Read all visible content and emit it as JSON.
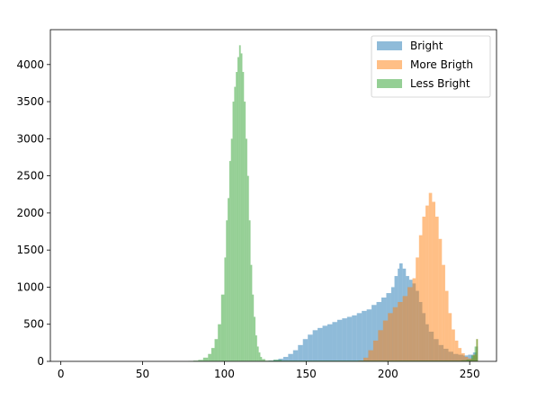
{
  "chart_data": {
    "type": "histogram",
    "xlim": [
      -6.4,
      266.4
    ],
    "ylim": [
      0,
      4470
    ],
    "xticks": [
      0,
      50,
      100,
      150,
      200,
      250
    ],
    "yticks": [
      0,
      500,
      1000,
      1500,
      2000,
      2500,
      3000,
      3500,
      4000
    ],
    "legend_position": "top-right",
    "alpha": 0.5,
    "series": [
      {
        "name": "Bright",
        "color": "#1f77b4",
        "bins": [
          [
            127,
            10
          ],
          [
            130,
            20
          ],
          [
            133,
            35
          ],
          [
            136,
            60
          ],
          [
            139,
            100
          ],
          [
            142,
            150
          ],
          [
            145,
            220
          ],
          [
            148,
            300
          ],
          [
            151,
            360
          ],
          [
            154,
            420
          ],
          [
            157,
            450
          ],
          [
            160,
            480
          ],
          [
            163,
            500
          ],
          [
            166,
            530
          ],
          [
            169,
            560
          ],
          [
            172,
            580
          ],
          [
            175,
            600
          ],
          [
            178,
            620
          ],
          [
            181,
            650
          ],
          [
            184,
            680
          ],
          [
            187,
            700
          ],
          [
            190,
            760
          ],
          [
            193,
            800
          ],
          [
            196,
            860
          ],
          [
            199,
            920
          ],
          [
            202,
            1000
          ],
          [
            204,
            1150
          ],
          [
            206,
            1250
          ],
          [
            207,
            1320
          ],
          [
            209,
            1250
          ],
          [
            211,
            1150
          ],
          [
            213,
            1100
          ],
          [
            215,
            1050
          ],
          [
            217,
            950
          ],
          [
            219,
            800
          ],
          [
            221,
            650
          ],
          [
            223,
            500
          ],
          [
            225,
            400
          ],
          [
            228,
            300
          ],
          [
            231,
            220
          ],
          [
            234,
            170
          ],
          [
            237,
            130
          ],
          [
            240,
            100
          ],
          [
            243,
            90
          ],
          [
            246,
            80
          ],
          [
            249,
            90
          ],
          [
            252,
            120
          ],
          [
            254,
            200
          ]
        ]
      },
      {
        "name": "More Brigth",
        "color": "#ff7f0e",
        "bins": [
          [
            182,
            10
          ],
          [
            185,
            50
          ],
          [
            188,
            150
          ],
          [
            191,
            280
          ],
          [
            194,
            420
          ],
          [
            197,
            550
          ],
          [
            200,
            650
          ],
          [
            203,
            730
          ],
          [
            206,
            800
          ],
          [
            209,
            880
          ],
          [
            212,
            1000
          ],
          [
            215,
            1120
          ],
          [
            217,
            1400
          ],
          [
            219,
            1700
          ],
          [
            221,
            1950
          ],
          [
            223,
            2100
          ],
          [
            225,
            2270
          ],
          [
            227,
            2150
          ],
          [
            229,
            1950
          ],
          [
            231,
            1650
          ],
          [
            233,
            1300
          ],
          [
            235,
            950
          ],
          [
            237,
            650
          ],
          [
            239,
            430
          ],
          [
            241,
            280
          ],
          [
            243,
            180
          ],
          [
            245,
            110
          ],
          [
            247,
            60
          ],
          [
            249,
            40
          ],
          [
            252,
            90
          ],
          [
            254,
            300
          ]
        ]
      },
      {
        "name": "Less Bright",
        "color": "#2ca02c",
        "bins": [
          [
            78,
            5
          ],
          [
            81,
            10
          ],
          [
            84,
            20
          ],
          [
            87,
            50
          ],
          [
            90,
            100
          ],
          [
            92,
            180
          ],
          [
            94,
            300
          ],
          [
            96,
            500
          ],
          [
            98,
            900
          ],
          [
            100,
            1400
          ],
          [
            101,
            1900
          ],
          [
            102,
            2200
          ],
          [
            103,
            2700
          ],
          [
            104,
            3000
          ],
          [
            105,
            3500
          ],
          [
            106,
            3700
          ],
          [
            107,
            3900
          ],
          [
            108,
            4100
          ],
          [
            109,
            4260
          ],
          [
            110,
            4150
          ],
          [
            111,
            3900
          ],
          [
            112,
            3500
          ],
          [
            113,
            3000
          ],
          [
            114,
            2500
          ],
          [
            115,
            1900
          ],
          [
            116,
            1300
          ],
          [
            117,
            900
          ],
          [
            118,
            600
          ],
          [
            119,
            350
          ],
          [
            120,
            200
          ],
          [
            121,
            120
          ],
          [
            122,
            60
          ],
          [
            123,
            30
          ],
          [
            125,
            10
          ],
          [
            130,
            20
          ],
          [
            135,
            10
          ],
          [
            245,
            15
          ],
          [
            248,
            25
          ],
          [
            251,
            80
          ],
          [
            253,
            200
          ],
          [
            254,
            300
          ]
        ]
      }
    ]
  }
}
